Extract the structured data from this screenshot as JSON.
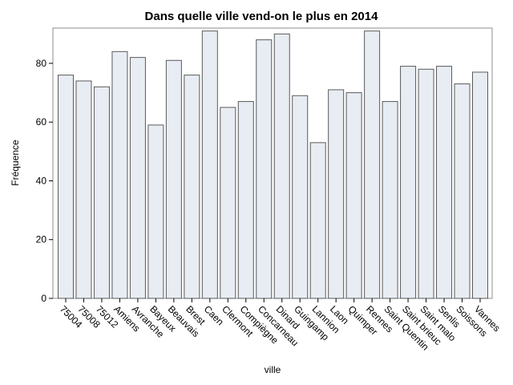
{
  "chart_data": {
    "type": "bar",
    "title": "Dans quelle ville vend-on le plus en 2014",
    "xlabel": "ville",
    "ylabel": "Fréquence",
    "categories": [
      "75004",
      "75008",
      "75012",
      "Amiens",
      "Avranche",
      "Bayeux",
      "Beauvais",
      "Brest",
      "Caen",
      "Clermont",
      "Compiègne",
      "Concarneau",
      "Dinard",
      "Guingamp",
      "Lannion",
      "Laon",
      "Quimper",
      "Rennes",
      "Saint Quentin",
      "Saint brieuc",
      "Saint malo",
      "Senlis",
      "Soissons",
      "Vannes"
    ],
    "values": [
      76,
      74,
      72,
      84,
      82,
      59,
      81,
      76,
      91,
      65,
      67,
      88,
      90,
      69,
      53,
      71,
      70,
      91,
      67,
      79,
      78,
      79,
      73,
      77
    ],
    "ylim": [
      0,
      92
    ],
    "yticks": [
      0,
      20,
      40,
      60,
      80
    ],
    "grid": false,
    "colors": {
      "bar_fill": "#e8ecf3",
      "bar_stroke": "#5a5a5a",
      "frame": "#8c8c8c"
    }
  }
}
